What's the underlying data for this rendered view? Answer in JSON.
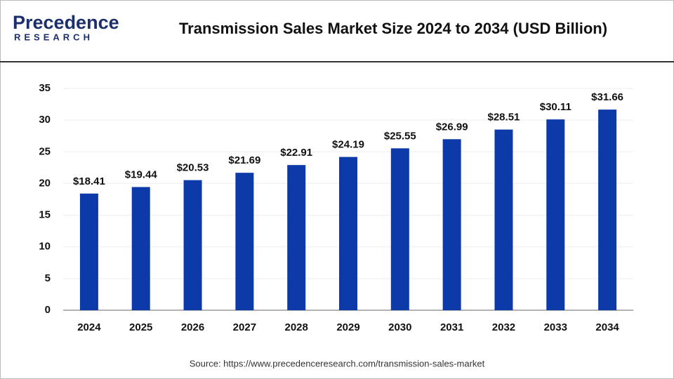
{
  "logo": {
    "name": "Precedence",
    "sub": "RESEARCH"
  },
  "chart_data": {
    "type": "bar",
    "title": "Transmission Sales Market Size 2024 to 2034 (USD Billion)",
    "categories": [
      "2024",
      "2025",
      "2026",
      "2027",
      "2028",
      "2029",
      "2030",
      "2031",
      "2032",
      "2033",
      "2034"
    ],
    "values": [
      18.41,
      19.44,
      20.53,
      21.69,
      22.91,
      24.19,
      25.55,
      26.99,
      28.51,
      30.11,
      31.66
    ],
    "value_labels": [
      "$18.41",
      "$19.44",
      "$20.53",
      "$21.69",
      "$22.91",
      "$24.19",
      "$25.55",
      "$26.99",
      "$28.51",
      "$30.11",
      "$31.66"
    ],
    "color": "#0d3aa9",
    "ylim": [
      0,
      35
    ],
    "yticks": [
      0,
      5,
      10,
      15,
      20,
      25,
      30,
      35
    ],
    "grid": true,
    "source": "Source: https://www.precedenceresearch.com/transmission-sales-market"
  }
}
